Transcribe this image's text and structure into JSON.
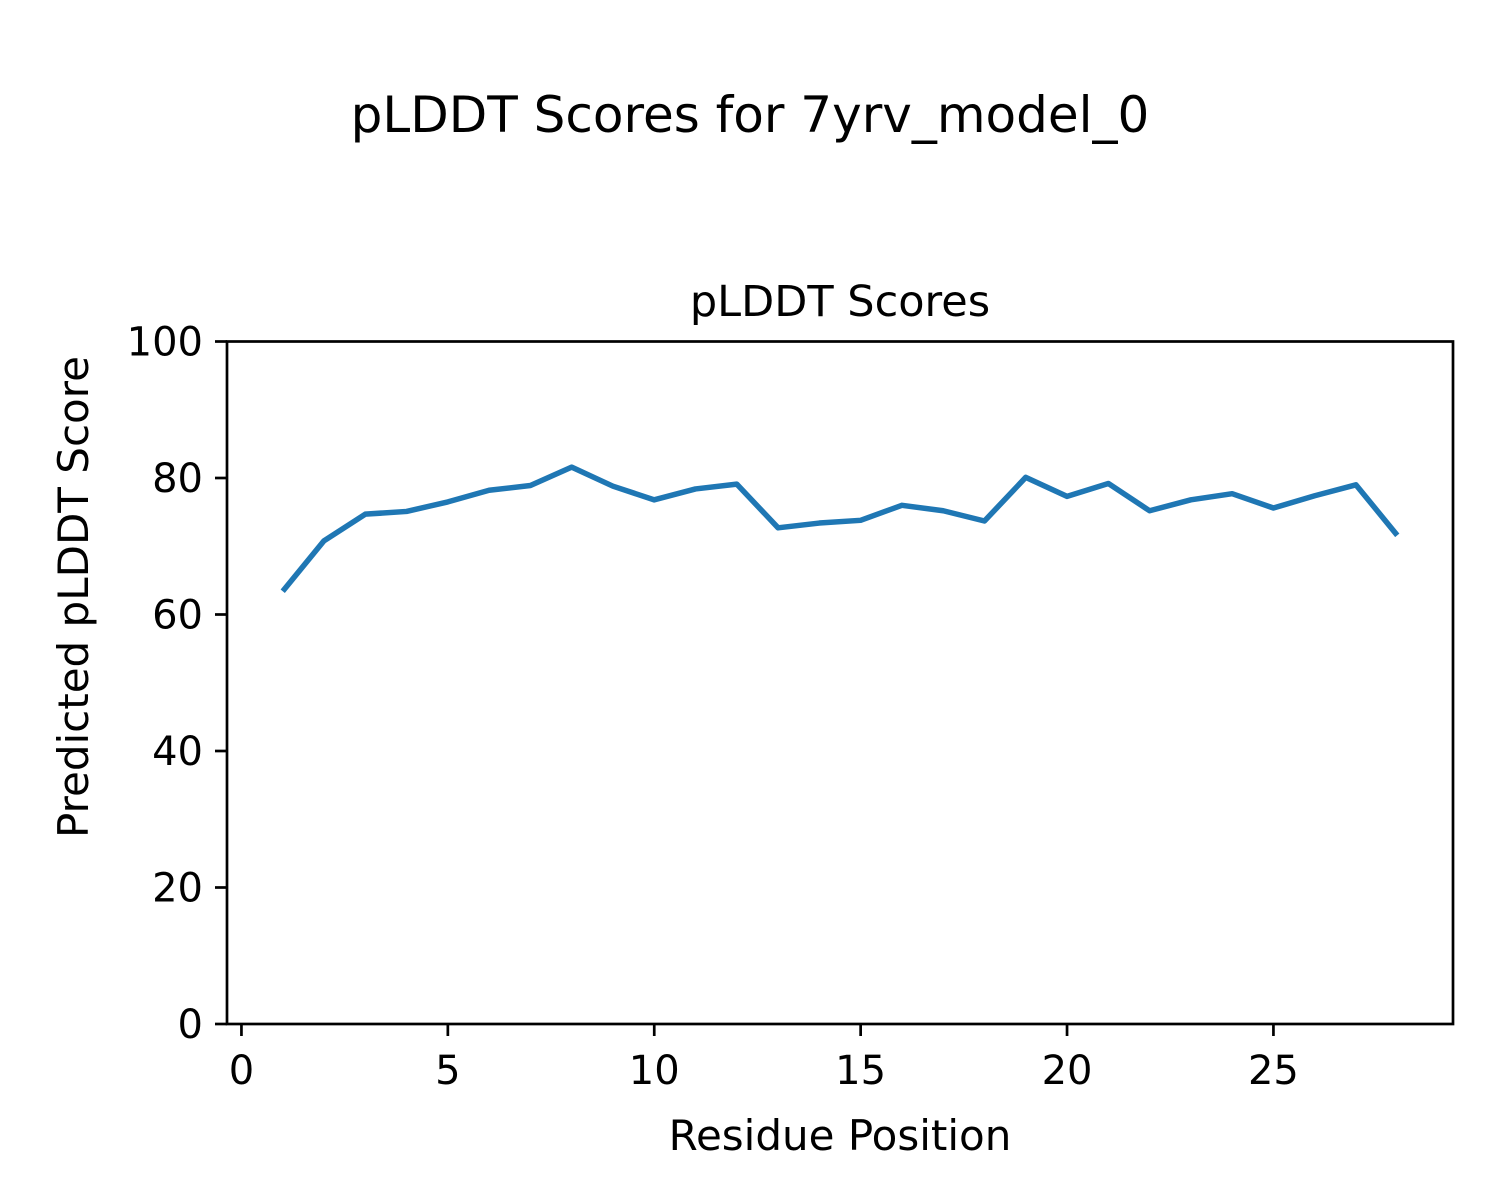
{
  "figure": {
    "suptitle": "pLDDT Scores for 7yrv_model_0",
    "background_color": "#ffffff",
    "text_color": "#000000",
    "axis_color": "#000000"
  },
  "chart_data": {
    "type": "line",
    "title": "pLDDT Scores",
    "xlabel": "Residue Position",
    "ylabel": "Predicted pLDDT Score",
    "x": [
      1,
      2,
      3,
      4,
      5,
      6,
      7,
      8,
      9,
      10,
      11,
      12,
      13,
      14,
      15,
      16,
      17,
      18,
      19,
      20,
      21,
      22,
      23,
      24,
      25,
      26,
      27,
      28
    ],
    "series": [
      {
        "name": "pLDDT",
        "color": "#1f77b4",
        "values": [
          63.4,
          70.8,
          74.7,
          75.1,
          76.5,
          78.2,
          78.9,
          81.6,
          78.8,
          76.8,
          78.4,
          79.1,
          72.7,
          73.4,
          73.8,
          76.0,
          75.2,
          73.7,
          80.1,
          77.3,
          79.2,
          75.2,
          76.8,
          77.7,
          75.6,
          77.4,
          79.0,
          71.6
        ]
      }
    ],
    "xlim": [
      -0.35,
      29.35
    ],
    "ylim": [
      0,
      100
    ],
    "xticks": [
      0,
      5,
      10,
      15,
      20,
      25
    ],
    "yticks": [
      0,
      20,
      40,
      60,
      80,
      100
    ],
    "grid": false,
    "legend_position": "none"
  }
}
